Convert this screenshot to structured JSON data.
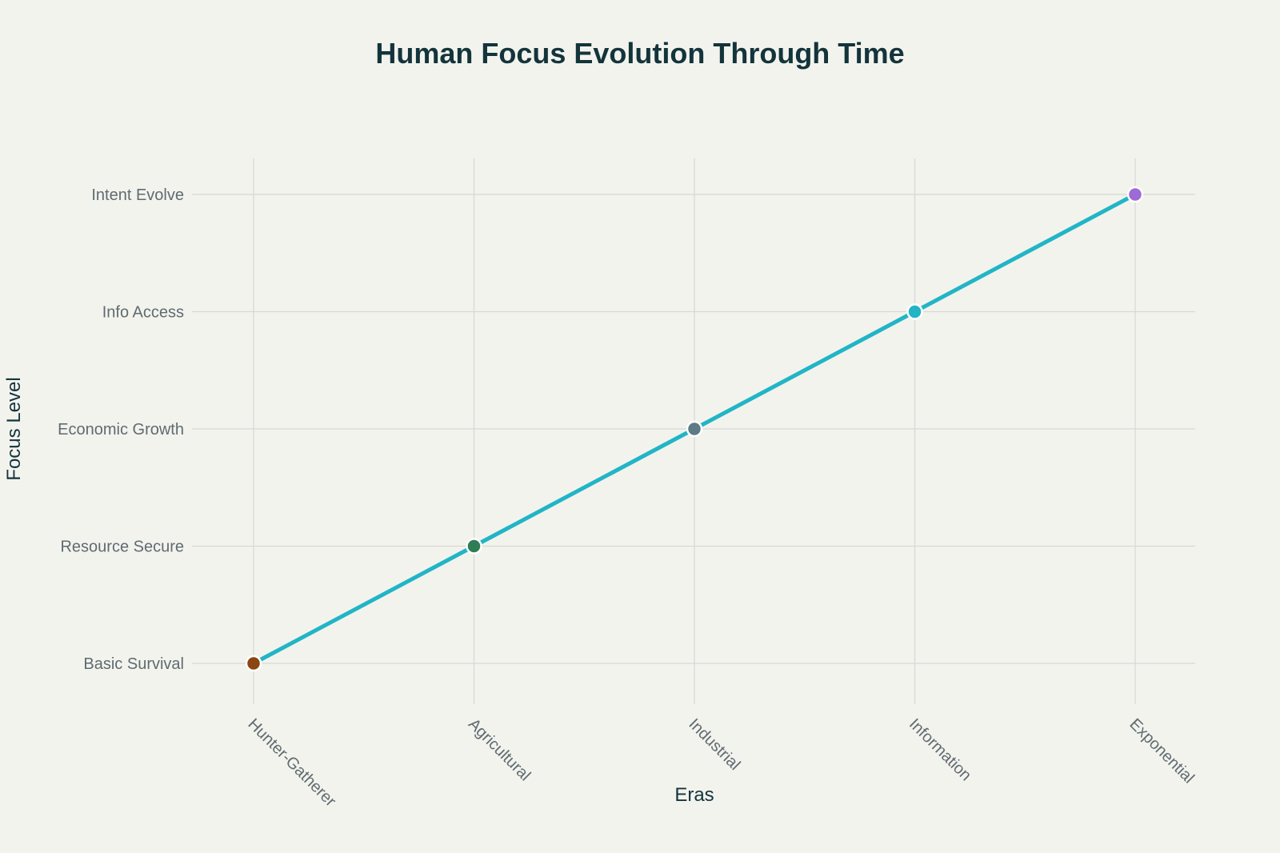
{
  "chart_data": {
    "type": "line",
    "title": "Human Focus Evolution Through Time",
    "xlabel": "Eras",
    "ylabel": "Focus Level",
    "categories": [
      "Hunter-Gatherer",
      "Agricultural",
      "Industrial",
      "Information",
      "Exponential"
    ],
    "y_categories": [
      "Basic Survival",
      "Resource Secure",
      "Economic Growth",
      "Info Access",
      "Intent Evolve"
    ],
    "series": [
      {
        "values": [
          1,
          2,
          3,
          4,
          5
        ],
        "line_color": "#21b5c6",
        "marker_colors": [
          "#8b4513",
          "#2e7d55",
          "#5d7a85",
          "#21b5c6",
          "#9e6ad6"
        ]
      }
    ],
    "ylim": [
      1,
      5
    ],
    "grid": true,
    "legend": "none"
  }
}
